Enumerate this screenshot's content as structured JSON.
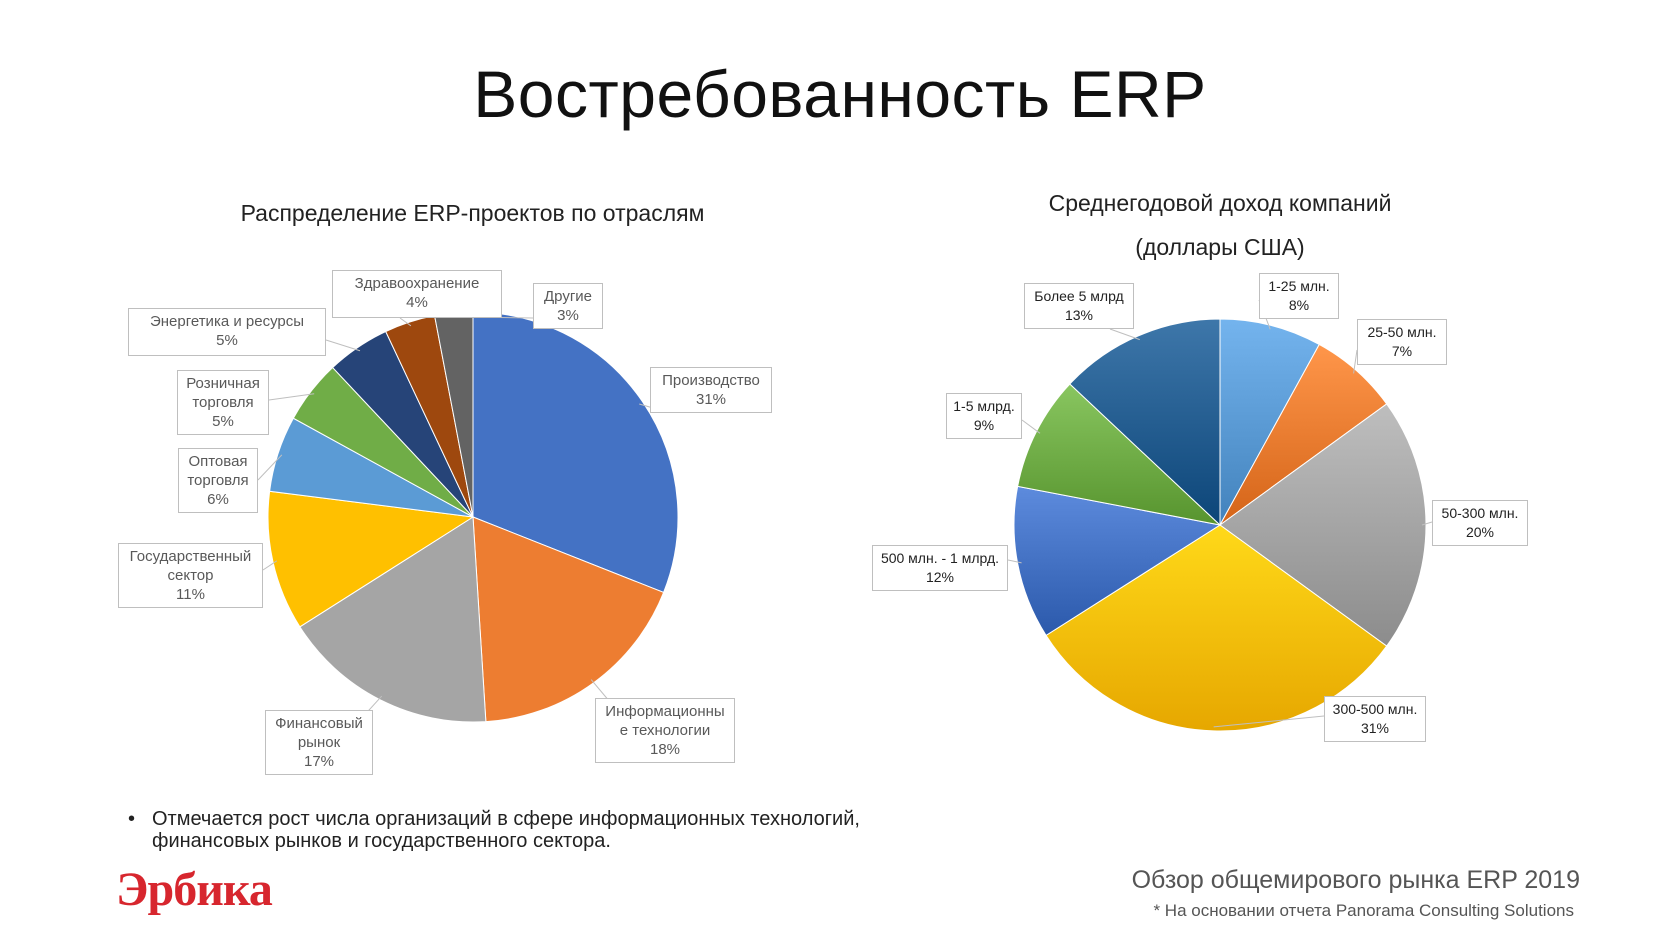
{
  "slide": {
    "title": "Востребованность ERP",
    "bullet": "Отмечается рост числа организаций в сфере информационных технологий, финансовых рынков и государственного сектора.",
    "bullet_marker": "•",
    "logo": "Эрбика",
    "footer_title": "Обзор общемирового рынка ERP 2019",
    "footer_note": "* На основании отчета Panorama Consulting Solutions"
  },
  "chart_data": [
    {
      "type": "pie",
      "title": "Распределение ERP-проектов по отраслям",
      "slices": [
        {
          "label": "Производство",
          "value": 31,
          "display": "31%",
          "color": "#4472c4"
        },
        {
          "label": "Информационные технологии",
          "display_lines": [
            "Информационны",
            "е технологии"
          ],
          "value": 18,
          "display": "18%",
          "color": "#ed7d31"
        },
        {
          "label": "Финансовый рынок",
          "display_lines": [
            "Финансовый",
            "рынок"
          ],
          "value": 17,
          "display": "17%",
          "color": "#a5a5a5"
        },
        {
          "label": "Государственный сектор",
          "display_lines": [
            "Государственный",
            "сектор"
          ],
          "value": 11,
          "display": "11%",
          "color": "#ffc000"
        },
        {
          "label": "Оптовая торговля",
          "display_lines": [
            "Оптовая",
            "торговля"
          ],
          "value": 6,
          "display": "6%",
          "color": "#5b9bd5"
        },
        {
          "label": "Розничная торговля",
          "display_lines": [
            "Розничная",
            "торговля"
          ],
          "value": 5,
          "display": "5%",
          "color": "#70ad47"
        },
        {
          "label": "Энергетика и ресурсы",
          "display_lines": [
            "Энергетика и ресурсы"
          ],
          "value": 5,
          "display": "5%",
          "color": "#264478"
        },
        {
          "label": "Здравоохранение",
          "display_lines": [
            "Здравоохранение"
          ],
          "value": 4,
          "display": "4%",
          "color": "#9e480e"
        },
        {
          "label": "Другие",
          "display_lines": [
            "Другие"
          ],
          "value": 3,
          "display": "3%",
          "color": "#636363"
        }
      ]
    },
    {
      "type": "pie",
      "title": "Среднегодовой доход компаний (доллары США)",
      "title_lines": [
        "Среднегодовой доход компаний",
        "(доллары США)"
      ],
      "slices": [
        {
          "label": "1-25 млн.",
          "value": 8,
          "display": "8%",
          "color": "#5b9bd5"
        },
        {
          "label": "25-50 млн.",
          "value": 7,
          "display": "7%",
          "color": "#ed7d31"
        },
        {
          "label": "50-300 млн.",
          "value": 20,
          "display": "20%",
          "color": "#a5a5a5"
        },
        {
          "label": "300-500 млн.",
          "value": 31,
          "display": "31%",
          "color": "#ffc000"
        },
        {
          "label": "500 млн. - 1 млрд.",
          "value": 12,
          "display": "12%",
          "color": "#4472c4"
        },
        {
          "label": "1-5 млрд.",
          "value": 9,
          "display": "9%",
          "color": "#70ad47"
        },
        {
          "label": "Более 5 млрд",
          "value": 13,
          "display": "13%",
          "color": "#255e91"
        }
      ]
    }
  ]
}
